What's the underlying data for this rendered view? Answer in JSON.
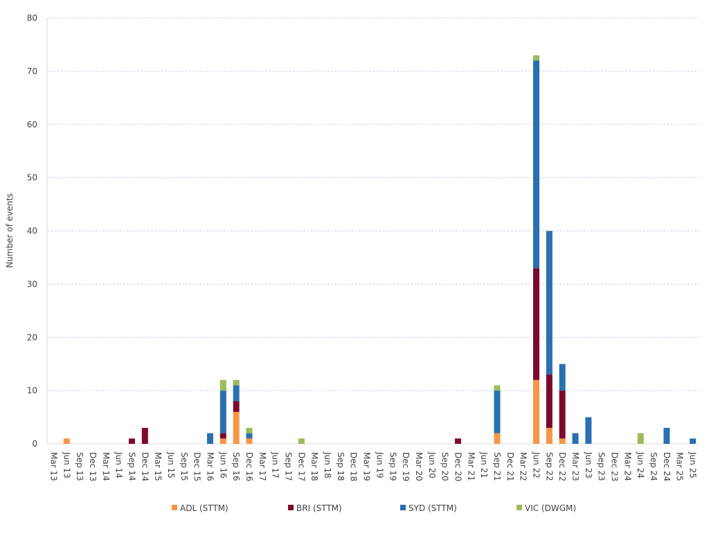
{
  "chart_data": {
    "type": "stacked_bar",
    "y_label": "Number of events",
    "categories": [
      "Mar 13",
      "Jun 13",
      "Sep 13",
      "Dec 13",
      "Mar 14",
      "Jun 14",
      "Sep 14",
      "Dec 14",
      "Mar 15",
      "Jun 15",
      "Sep 15",
      "Dec 15",
      "Mar 16",
      "Jun 16",
      "Sep 16",
      "Dec 16",
      "Mar 17",
      "Jun 17",
      "Sep 17",
      "Dec 17",
      "Mar 18",
      "Jun 18",
      "Sep 18",
      "Dec 18",
      "Mar 19",
      "Jun 19",
      "Sep 19",
      "Dec 19",
      "Mar 20",
      "Jun 20",
      "Sep 20",
      "Dec 20",
      "Mar 21",
      "Jun 21",
      "Sep 21",
      "Dec 21",
      "Mar 22",
      "Jun 22",
      "Sep 22",
      "Dec 22",
      "Mar 23",
      "Jun 23",
      "Sep 23",
      "Dec 23",
      "Mar 24",
      "Jun 24",
      "Sep 24",
      "Dec 24",
      "Mar 25",
      "Jun 25"
    ],
    "series": [
      {
        "name": "ADL (STTM)",
        "color": "#f79646",
        "values": [
          0,
          1,
          0,
          0,
          0,
          0,
          0,
          0,
          0,
          0,
          0,
          0,
          0,
          1,
          6,
          1,
          0,
          0,
          0,
          0,
          0,
          0,
          0,
          0,
          0,
          0,
          0,
          0,
          0,
          0,
          0,
          0,
          0,
          0,
          2,
          0,
          0,
          12,
          3,
          1,
          0,
          0,
          0,
          0,
          0,
          0,
          0,
          0,
          0,
          0
        ]
      },
      {
        "name": "BRI (STTM)",
        "color": "#7b0a2a",
        "values": [
          0,
          0,
          0,
          0,
          0,
          0,
          1,
          3,
          0,
          0,
          0,
          0,
          0,
          1,
          2,
          0,
          0,
          0,
          0,
          0,
          0,
          0,
          0,
          0,
          0,
          0,
          0,
          0,
          0,
          0,
          0,
          1,
          0,
          0,
          0,
          0,
          0,
          21,
          10,
          9,
          0,
          0,
          0,
          0,
          0,
          0,
          0,
          0,
          0,
          0
        ]
      },
      {
        "name": "SYD (STTM)",
        "color": "#2a6fb0",
        "values": [
          0,
          0,
          0,
          0,
          0,
          0,
          0,
          0,
          0,
          0,
          0,
          0,
          2,
          8,
          3,
          1,
          0,
          0,
          0,
          0,
          0,
          0,
          0,
          0,
          0,
          0,
          0,
          0,
          0,
          0,
          0,
          0,
          0,
          0,
          8,
          0,
          0,
          39,
          27,
          5,
          2,
          5,
          0,
          0,
          0,
          0,
          0,
          3,
          0,
          1
        ]
      },
      {
        "name": "VIC (DWGM)",
        "color": "#9bbb59",
        "values": [
          0,
          0,
          0,
          0,
          0,
          0,
          0,
          0,
          0,
          0,
          0,
          0,
          0,
          2,
          1,
          1,
          0,
          0,
          0,
          1,
          0,
          0,
          0,
          0,
          0,
          0,
          0,
          0,
          0,
          0,
          0,
          0,
          0,
          0,
          1,
          0,
          0,
          1,
          0,
          0,
          0,
          0,
          0,
          0,
          0,
          2,
          0,
          0,
          0,
          0
        ]
      }
    ],
    "ylim": [
      0,
      80
    ],
    "yticks": [
      0,
      10,
      20,
      30,
      40,
      50,
      60,
      70,
      80
    ],
    "grid": true,
    "legend": "bottom"
  }
}
